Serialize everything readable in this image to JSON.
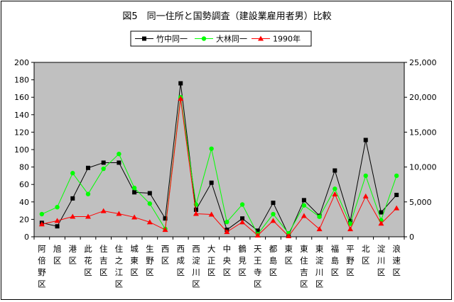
{
  "chart_data": {
    "type": "line",
    "title": "図5　同一住所と国勢調査（建設業雇用者男）比較",
    "categories": [
      "阿倍野区",
      "旭区",
      "港区",
      "此花区",
      "住吉区",
      "住之江区",
      "城東区",
      "生野区",
      "西区",
      "西成区",
      "西淀川区",
      "大正区",
      "中央区",
      "鶴見区",
      "天王寺区",
      "都島区",
      "東区",
      "東住吉区",
      "東淀川区",
      "福島区",
      "平野区",
      "北区",
      "淀川区",
      "浪速区"
    ],
    "series": [
      {
        "name": "竹中同一",
        "axis": "left",
        "color": "#000000",
        "marker": "square",
        "values": [
          16,
          12,
          44,
          79,
          85,
          85,
          51,
          50,
          21,
          176,
          31,
          62,
          8,
          21,
          7,
          39,
          2,
          42,
          24,
          76,
          18,
          111,
          28,
          48
        ]
      },
      {
        "name": "大林同一",
        "axis": "left",
        "color": "#00ff00",
        "marker": "circle",
        "values": [
          26,
          34,
          73,
          49,
          78,
          95,
          56,
          38,
          9,
          160,
          37,
          101,
          17,
          37,
          3,
          26,
          4,
          36,
          23,
          55,
          15,
          70,
          19,
          70
        ]
      },
      {
        "name": "1990年",
        "axis": "right",
        "color": "#ff0000",
        "marker": "triangle",
        "values": [
          1800,
          2300,
          2900,
          2900,
          3700,
          3300,
          2800,
          2100,
          1000,
          19800,
          3300,
          3200,
          700,
          2100,
          200,
          2300,
          100,
          3000,
          1100,
          6100,
          1100,
          5800,
          1900,
          4100
        ]
      }
    ],
    "ylim_left": [
      0,
      200
    ],
    "yticks_left": [
      "0",
      "20",
      "40",
      "60",
      "80",
      "100",
      "120",
      "140",
      "160",
      "180",
      "200"
    ],
    "ylim_right": [
      0,
      25000
    ],
    "yticks_right": [
      "0",
      "5,000",
      "10,000",
      "15,000",
      "20,000",
      "25,000"
    ],
    "legend_position": "top",
    "plot_background": "#c0c0c0",
    "grid": false
  }
}
